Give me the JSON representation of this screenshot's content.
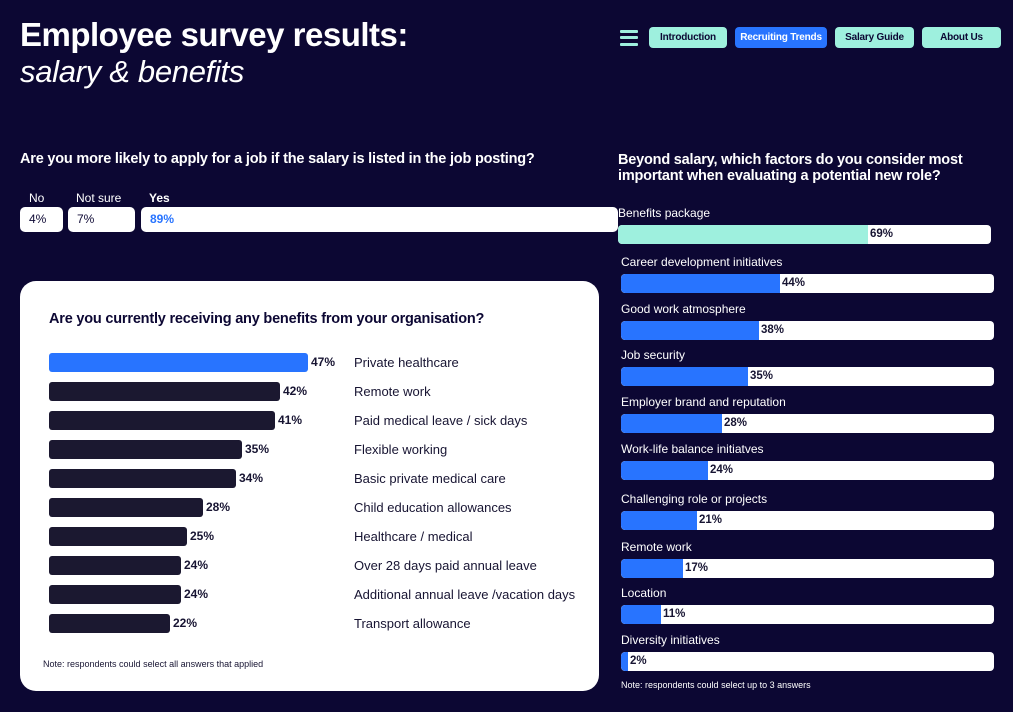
{
  "header": {
    "title": "Employee survey results:",
    "subtitle": "salary & benefits"
  },
  "nav": {
    "menu_icon": "hamburger-menu-icon",
    "items": [
      {
        "label": "Introduction",
        "active": false
      },
      {
        "label": "Recruiting Trends",
        "active": true
      },
      {
        "label": "Salary Guide",
        "active": false
      },
      {
        "label": "About Us",
        "active": false
      }
    ]
  },
  "colors": {
    "background": "#0c0733",
    "accent_blue": "#2874ff",
    "accent_mint": "#9ef0de",
    "dark_bar": "#1b1830",
    "white": "#ffffff"
  },
  "chart_data": [
    {
      "type": "bar",
      "orientation": "horizontal-stacked-segments",
      "title": "Are you more likely to apply for a job if the salary is listed in the job posting?",
      "categories": [
        "No",
        "Not sure",
        "Yes"
      ],
      "values": [
        4,
        7,
        89
      ],
      "value_labels": [
        "4%",
        "7%",
        "89%"
      ],
      "unit": "%",
      "highlight": "Yes"
    },
    {
      "type": "bar",
      "orientation": "horizontal",
      "title": "Are you currently receiving any benefits from your organisation?",
      "categories": [
        "Private healthcare",
        "Remote work",
        "Paid medical leave / sick days",
        "Flexible working",
        "Basic private medical care",
        "Child education allowances",
        "Healthcare / medical",
        "Over 28 days paid annual leave",
        "Additional annual leave /vacation days",
        "Transport allowance"
      ],
      "values": [
        47,
        42,
        41,
        35,
        34,
        28,
        25,
        24,
        24,
        22
      ],
      "value_labels": [
        "47%",
        "42%",
        "41%",
        "35%",
        "34%",
        "28%",
        "25%",
        "24%",
        "24%",
        "22%"
      ],
      "unit": "%",
      "xlim": [
        0,
        100
      ],
      "highlight": "Private healthcare",
      "note": "Note: respondents could select all answers that applied"
    },
    {
      "type": "bar",
      "orientation": "horizontal",
      "title": "Beyond salary, which factors do you consider most important when evaluating a potential new role?",
      "categories": [
        "Benefits package",
        "Career development initiatives",
        "Good work atmosphere",
        "Job security",
        "Employer brand and reputation",
        "Work-life balance initiatves",
        "Challenging role or projects",
        "Remote work",
        "Location",
        "Diversity initiatives"
      ],
      "values": [
        69,
        44,
        38,
        35,
        28,
        24,
        21,
        17,
        11,
        2
      ],
      "value_labels": [
        "69%",
        "44%",
        "38%",
        "35%",
        "28%",
        "24%",
        "21%",
        "17%",
        "11%",
        "2%"
      ],
      "unit": "%",
      "xlim": [
        0,
        100
      ],
      "highlight": "Benefits package",
      "note": "Note: respondents could select up to 3 answers"
    }
  ]
}
